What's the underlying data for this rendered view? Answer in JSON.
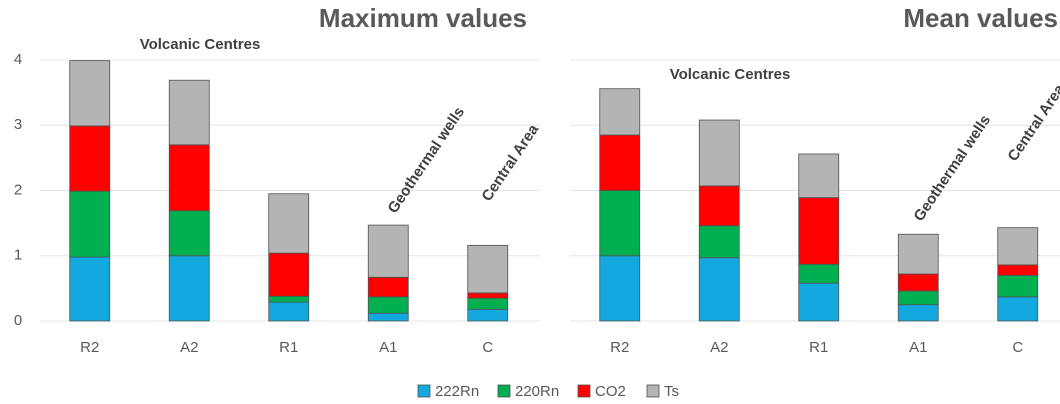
{
  "chart_data": [
    {
      "type": "bar",
      "stacked": true,
      "title": "Maximum values",
      "categories": [
        "R2",
        "A2",
        "R1",
        "A1",
        "C"
      ],
      "series": [
        {
          "name": "222Rn",
          "color": "#14a9de",
          "values": [
            0.98,
            1.0,
            0.29,
            0.12,
            0.18
          ]
        },
        {
          "name": "220Rn",
          "color": "#00b050",
          "values": [
            1.01,
            0.69,
            0.09,
            0.25,
            0.17
          ]
        },
        {
          "name": "CO2",
          "color": "#ff0000",
          "values": [
            1.0,
            1.01,
            0.66,
            0.3,
            0.08
          ]
        },
        {
          "name": "Ts",
          "color": "#b4b4b4",
          "values": [
            1.0,
            0.99,
            0.91,
            0.8,
            0.73
          ]
        }
      ],
      "annotations": [
        "Volcanic Centres",
        "Geothermal wells",
        "Central Area"
      ],
      "ylim": [
        0,
        4
      ],
      "yticks": [
        0,
        1,
        2,
        3,
        4
      ],
      "grid": true
    },
    {
      "type": "bar",
      "stacked": true,
      "title": "Mean values",
      "categories": [
        "R2",
        "A2",
        "R1",
        "A1",
        "C"
      ],
      "series": [
        {
          "color": "#14a9de",
          "values": [
            1.0,
            0.97,
            0.58,
            0.25,
            0.37
          ]
        },
        {
          "color": "#00b050",
          "values": [
            1.0,
            0.49,
            0.29,
            0.21,
            0.33
          ]
        },
        {
          "color": "#ff0000",
          "values": [
            0.85,
            0.61,
            1.02,
            0.26,
            0.16
          ]
        },
        {
          "color": "#b4b4b4",
          "values": [
            0.71,
            1.01,
            0.67,
            0.61,
            0.57
          ]
        }
      ],
      "annotations": [
        "Volcanic Centres",
        "Geothermal wells",
        "Central Area"
      ],
      "ylim": [
        0,
        4
      ],
      "yticks": [
        0,
        1,
        2,
        3,
        4
      ],
      "grid": true
    }
  ]
}
